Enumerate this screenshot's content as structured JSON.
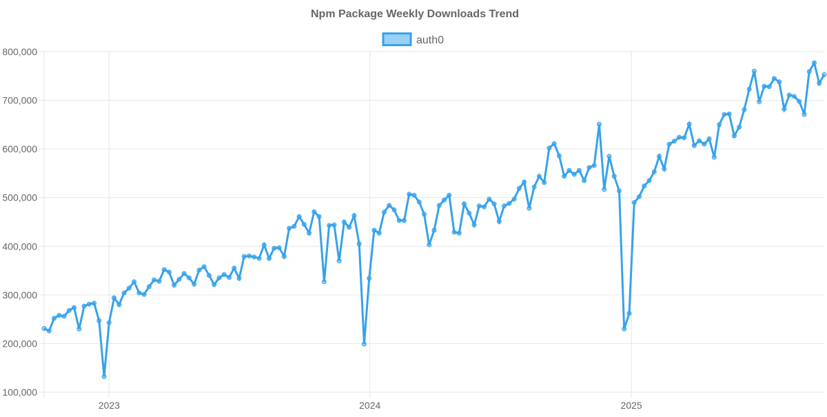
{
  "chart_data": {
    "type": "line",
    "title": "Npm Package Weekly Downloads Trend",
    "xlabel": "",
    "ylabel": "",
    "x_start": "2022-10-02",
    "x_interval_days": 7,
    "x_ticks": [
      {
        "label": "2023",
        "date": "2023-01-01"
      },
      {
        "label": "2024",
        "date": "2024-01-01"
      },
      {
        "label": "2025",
        "date": "2025-01-01"
      }
    ],
    "y_ticks": [
      {
        "label": "100,000",
        "value": 100000
      },
      {
        "label": "200,000",
        "value": 200000
      },
      {
        "label": "300,000",
        "value": 300000
      },
      {
        "label": "400,000",
        "value": 400000
      },
      {
        "label": "500,000",
        "value": 500000
      },
      {
        "label": "600,000",
        "value": 600000
      },
      {
        "label": "700,000",
        "value": 700000
      },
      {
        "label": "800,000",
        "value": 800000
      }
    ],
    "ylim": [
      100000,
      800000
    ],
    "grid": true,
    "legend": "top-center",
    "series": [
      {
        "name": "auth0",
        "color": "#36a2eb",
        "fill": "#9ad0f5",
        "values": [
          231000,
          226000,
          252000,
          258000,
          256000,
          268000,
          274000,
          230000,
          277000,
          281000,
          283000,
          247000,
          132000,
          243000,
          294000,
          280000,
          304000,
          314000,
          327000,
          304000,
          301000,
          317000,
          331000,
          328000,
          352000,
          347000,
          320000,
          332000,
          344000,
          335000,
          322000,
          351000,
          358000,
          340000,
          321000,
          335000,
          342000,
          336000,
          355000,
          334000,
          379000,
          380000,
          378000,
          375000,
          403000,
          375000,
          396000,
          397000,
          379000,
          437000,
          441000,
          461000,
          445000,
          427000,
          471000,
          461000,
          327000,
          443000,
          444000,
          370000,
          450000,
          439000,
          463000,
          405000,
          199000,
          334000,
          433000,
          427000,
          470000,
          484000,
          475000,
          453000,
          453000,
          507000,
          505000,
          491000,
          466000,
          403000,
          433000,
          484000,
          495000,
          505000,
          429000,
          427000,
          487000,
          468000,
          444000,
          483000,
          481000,
          497000,
          487000,
          451000,
          483000,
          488000,
          497000,
          519000,
          532000,
          478000,
          522000,
          544000,
          531000,
          602000,
          611000,
          586000,
          544000,
          556000,
          548000,
          556000,
          535000,
          562000,
          566000,
          651000,
          517000,
          585000,
          544000,
          514000,
          230000,
          262000,
          490000,
          502000,
          524000,
          535000,
          553000,
          585000,
          559000,
          610000,
          616000,
          624000,
          623000,
          651000,
          607000,
          617000,
          610000,
          621000,
          583000,
          650000,
          671000,
          672000,
          627000,
          645000,
          681000,
          723000,
          760000,
          697000,
          729000,
          728000,
          745000,
          738000,
          682000,
          711000,
          708000,
          698000,
          671000,
          759000,
          777000,
          735000,
          753000
        ]
      }
    ]
  }
}
